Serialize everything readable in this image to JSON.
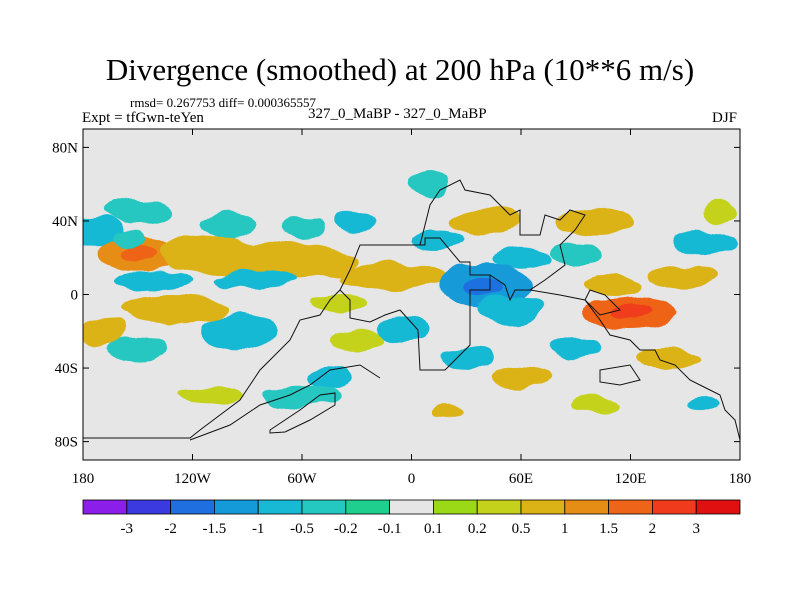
{
  "header": {
    "title": "Divergence (smoothed) at 200 hPa (10**6 m/s)",
    "stats": "rmsd= 0.267753 diff= 0.000365557",
    "experiment": "Expt = tfGwn-teYen",
    "runs": "327_0_MaBP - 327_0_MaBP",
    "season": "DJF"
  },
  "chart_data": {
    "type": "heatmap",
    "title": "Divergence (smoothed) at 200 hPa (10**6 m/s)",
    "subtitle": "327_0_MaBP - 327_0_MaBP",
    "xlabel": "",
    "ylabel": "",
    "xlim": [
      -180,
      180
    ],
    "ylim": [
      -90,
      90
    ],
    "x_ticks": [
      -180,
      -120,
      -60,
      0,
      60,
      120,
      180
    ],
    "x_tick_labels": [
      "180",
      "120W",
      "60W",
      "0",
      "60E",
      "120E",
      "180"
    ],
    "y_ticks": [
      80,
      40,
      0,
      -40,
      -80
    ],
    "y_tick_labels": [
      "80N",
      "40N",
      "0",
      "40S",
      "80S"
    ],
    "grid": false,
    "colorbar": {
      "boundaries": [
        "-3",
        "-2",
        "-1.5",
        "-1",
        "-0.5",
        "-0.2",
        "-0.1",
        "0.1",
        "0.2",
        "0.5",
        "1",
        "1.5",
        "2",
        "3"
      ],
      "colors": [
        "#8b1ee8",
        "#3a3ae0",
        "#1f6fe0",
        "#149ad8",
        "#17b9d4",
        "#25c7c1",
        "#1fcf8e",
        "#e6e6e6",
        "#9bd916",
        "#c4d21c",
        "#dcb316",
        "#e68d16",
        "#ee6418",
        "#f03c1c",
        "#e01010"
      ]
    },
    "blobs": [
      {
        "lon": -172,
        "lat": 34,
        "rlon": 14,
        "rlat": 8,
        "cls": 4
      },
      {
        "lon": -150,
        "lat": 22,
        "rlon": 22,
        "rlat": 9,
        "cls": 11
      },
      {
        "lon": -155,
        "lat": 30,
        "rlon": 9,
        "rlat": 5,
        "cls": 5
      },
      {
        "lon": -150,
        "lat": 45,
        "rlon": 18,
        "rlat": 7,
        "cls": 5
      },
      {
        "lon": -100,
        "lat": 38,
        "rlon": 16,
        "rlat": 7,
        "cls": 5
      },
      {
        "lon": -110,
        "lat": 22,
        "rlon": 28,
        "rlat": 10,
        "cls": 10
      },
      {
        "lon": -60,
        "lat": 36,
        "rlon": 12,
        "rlat": 6,
        "cls": 5
      },
      {
        "lon": -70,
        "lat": 18,
        "rlon": 40,
        "rlat": 10,
        "cls": 10
      },
      {
        "lon": -85,
        "lat": 8,
        "rlon": 22,
        "rlat": 5,
        "cls": 4
      },
      {
        "lon": -140,
        "lat": 8,
        "rlon": 22,
        "rlat": 5,
        "cls": 4
      },
      {
        "lon": -30,
        "lat": 40,
        "rlon": 12,
        "rlat": 6,
        "cls": 4
      },
      {
        "lon": -10,
        "lat": 10,
        "rlon": 30,
        "rlat": 7,
        "cls": 10
      },
      {
        "lon": -40,
        "lat": -5,
        "rlon": 16,
        "rlat": 5,
        "cls": 9
      },
      {
        "lon": -130,
        "lat": -8,
        "rlon": 30,
        "rlat": 8,
        "cls": 10
      },
      {
        "lon": -95,
        "lat": -20,
        "rlon": 20,
        "rlat": 9,
        "cls": 4
      },
      {
        "lon": -150,
        "lat": -30,
        "rlon": 16,
        "rlat": 7,
        "cls": 5
      },
      {
        "lon": -170,
        "lat": -20,
        "rlon": 12,
        "rlat": 8,
        "cls": 10
      },
      {
        "lon": -30,
        "lat": -25,
        "rlon": 14,
        "rlat": 6,
        "cls": 9
      },
      {
        "lon": -5,
        "lat": -20,
        "rlon": 14,
        "rlat": 7,
        "cls": 4
      },
      {
        "lon": -60,
        "lat": -55,
        "rlon": 22,
        "rlat": 6,
        "cls": 5
      },
      {
        "lon": -45,
        "lat": -45,
        "rlon": 12,
        "rlat": 6,
        "cls": 4
      },
      {
        "lon": -110,
        "lat": -55,
        "rlon": 18,
        "rlat": 5,
        "cls": 9
      },
      {
        "lon": 10,
        "lat": 60,
        "rlon": 10,
        "rlat": 8,
        "cls": 5
      },
      {
        "lon": 40,
        "lat": 40,
        "rlon": 20,
        "rlat": 7,
        "cls": 10
      },
      {
        "lon": 15,
        "lat": 30,
        "rlon": 14,
        "rlat": 5,
        "cls": 4
      },
      {
        "lon": 60,
        "lat": 20,
        "rlon": 16,
        "rlat": 6,
        "cls": 4
      },
      {
        "lon": 40,
        "lat": 5,
        "rlon": 25,
        "rlat": 12,
        "cls": 3
      },
      {
        "lon": 55,
        "lat": -8,
        "rlon": 18,
        "rlat": 8,
        "cls": 4
      },
      {
        "lon": 100,
        "lat": 40,
        "rlon": 22,
        "rlat": 8,
        "cls": 10
      },
      {
        "lon": 90,
        "lat": 22,
        "rlon": 14,
        "rlat": 6,
        "cls": 5
      },
      {
        "lon": 120,
        "lat": -10,
        "rlon": 26,
        "rlat": 9,
        "cls": 12
      },
      {
        "lon": 110,
        "lat": 5,
        "rlon": 16,
        "rlat": 5,
        "cls": 10
      },
      {
        "lon": 160,
        "lat": 28,
        "rlon": 18,
        "rlat": 7,
        "cls": 4
      },
      {
        "lon": 150,
        "lat": 10,
        "rlon": 20,
        "rlat": 6,
        "cls": 10
      },
      {
        "lon": 170,
        "lat": 45,
        "rlon": 10,
        "rlat": 6,
        "cls": 9
      },
      {
        "lon": 90,
        "lat": -30,
        "rlon": 14,
        "rlat": 6,
        "cls": 4
      },
      {
        "lon": 140,
        "lat": -35,
        "rlon": 18,
        "rlat": 6,
        "cls": 10
      },
      {
        "lon": 60,
        "lat": -45,
        "rlon": 16,
        "rlat": 6,
        "cls": 10
      },
      {
        "lon": 30,
        "lat": -35,
        "rlon": 14,
        "rlat": 6,
        "cls": 4
      },
      {
        "lon": 100,
        "lat": -60,
        "rlon": 12,
        "rlat": 5,
        "cls": 9
      },
      {
        "lon": 160,
        "lat": -60,
        "rlon": 10,
        "rlat": 5,
        "cls": 4
      },
      {
        "lon": 20,
        "lat": -65,
        "rlon": 10,
        "rlat": 4,
        "cls": 10
      }
    ]
  }
}
